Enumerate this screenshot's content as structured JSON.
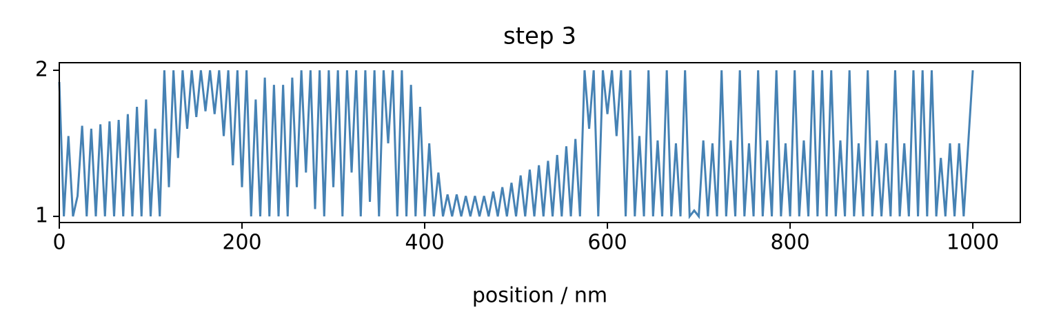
{
  "chart_data": {
    "type": "line",
    "title": "step 3",
    "xlabel": "position / nm",
    "x": [
      0,
      5,
      10,
      15,
      20,
      25,
      30,
      35,
      40,
      45,
      50,
      55,
      60,
      65,
      70,
      75,
      80,
      85,
      90,
      95,
      100,
      105,
      110,
      115,
      120,
      125,
      130,
      135,
      140,
      145,
      150,
      155,
      160,
      165,
      170,
      175,
      180,
      185,
      190,
      195,
      200,
      205,
      210,
      215,
      220,
      225,
      230,
      235,
      240,
      245,
      250,
      255,
      260,
      265,
      270,
      275,
      280,
      285,
      290,
      295,
      300,
      305,
      310,
      315,
      320,
      325,
      330,
      335,
      340,
      345,
      350,
      355,
      360,
      365,
      370,
      375,
      380,
      385,
      390,
      395,
      400,
      405,
      410,
      415,
      420,
      425,
      430,
      435,
      440,
      445,
      450,
      455,
      460,
      465,
      470,
      475,
      480,
      485,
      490,
      495,
      500,
      505,
      510,
      515,
      520,
      525,
      530,
      535,
      540,
      545,
      550,
      555,
      560,
      565,
      570,
      575,
      580,
      585,
      590,
      595,
      600,
      605,
      610,
      615,
      620,
      625,
      630,
      635,
      640,
      645,
      650,
      655,
      660,
      665,
      670,
      675,
      680,
      685,
      690,
      695,
      700,
      705,
      710,
      715,
      720,
      725,
      730,
      735,
      740,
      745,
      750,
      755,
      760,
      765,
      770,
      775,
      780,
      785,
      790,
      795,
      800,
      805,
      810,
      815,
      820,
      825,
      830,
      835,
      840,
      845,
      850,
      855,
      860,
      865,
      870,
      875,
      880,
      885,
      890,
      895,
      900,
      905,
      910,
      915,
      920,
      925,
      930,
      935,
      940,
      945,
      950,
      955,
      960,
      965,
      970,
      975,
      980,
      985,
      990,
      995,
      1000
    ],
    "series": [
      {
        "color": "#4682b4",
        "values": [
          1.92,
          1.0,
          1.55,
          1.0,
          1.14,
          1.62,
          1.0,
          1.6,
          1.0,
          1.63,
          1.0,
          1.65,
          1.0,
          1.66,
          1.0,
          1.7,
          1.0,
          1.75,
          1.0,
          1.8,
          1.0,
          1.6,
          1.0,
          2.0,
          1.2,
          2.0,
          1.4,
          2.0,
          1.6,
          2.0,
          1.68,
          2.0,
          1.72,
          2.0,
          1.7,
          2.0,
          1.55,
          2.0,
          1.35,
          2.0,
          1.2,
          2.0,
          1.0,
          1.8,
          1.0,
          1.95,
          1.0,
          1.9,
          1.0,
          1.9,
          1.0,
          1.95,
          1.2,
          2.0,
          1.3,
          2.0,
          1.05,
          2.0,
          1.0,
          2.0,
          1.2,
          2.0,
          1.0,
          2.0,
          1.3,
          2.0,
          1.0,
          2.0,
          1.1,
          2.0,
          1.0,
          2.0,
          1.5,
          2.0,
          1.0,
          2.0,
          1.0,
          1.9,
          1.0,
          1.75,
          1.0,
          1.5,
          1.0,
          1.3,
          1.0,
          1.15,
          1.0,
          1.15,
          1.0,
          1.14,
          1.0,
          1.14,
          1.0,
          1.14,
          1.0,
          1.17,
          1.0,
          1.2,
          1.0,
          1.23,
          1.0,
          1.28,
          1.0,
          1.32,
          1.0,
          1.35,
          1.0,
          1.38,
          1.0,
          1.42,
          1.0,
          1.48,
          1.0,
          1.53,
          1.0,
          2.0,
          1.6,
          2.0,
          1.0,
          2.0,
          1.7,
          2.0,
          1.55,
          2.0,
          1.0,
          2.0,
          1.0,
          1.55,
          1.0,
          2.0,
          1.0,
          1.52,
          1.0,
          2.0,
          1.0,
          1.5,
          1.0,
          2.0,
          1.0,
          1.04,
          1.0,
          1.52,
          1.0,
          1.5,
          1.0,
          2.0,
          1.0,
          1.52,
          1.0,
          2.0,
          1.0,
          1.5,
          1.0,
          2.0,
          1.0,
          1.52,
          1.0,
          2.0,
          1.0,
          1.5,
          1.0,
          2.0,
          1.0,
          1.52,
          1.0,
          2.0,
          1.0,
          2.0,
          1.0,
          2.0,
          1.0,
          1.52,
          1.0,
          2.0,
          1.0,
          1.5,
          1.0,
          2.0,
          1.0,
          1.52,
          1.0,
          1.5,
          1.0,
          2.0,
          1.0,
          1.5,
          1.0,
          2.0,
          1.0,
          2.0,
          1.0,
          2.0,
          1.0,
          1.4,
          1.0,
          1.5,
          1.0,
          1.5,
          1.0,
          1.5,
          2.0
        ]
      }
    ],
    "xlim": [
      0,
      1052
    ],
    "ylim": [
      0.958,
      2.052
    ],
    "xticks": [
      0,
      200,
      400,
      600,
      800,
      1000
    ],
    "yticks": [
      1,
      2
    ],
    "grid": false
  }
}
